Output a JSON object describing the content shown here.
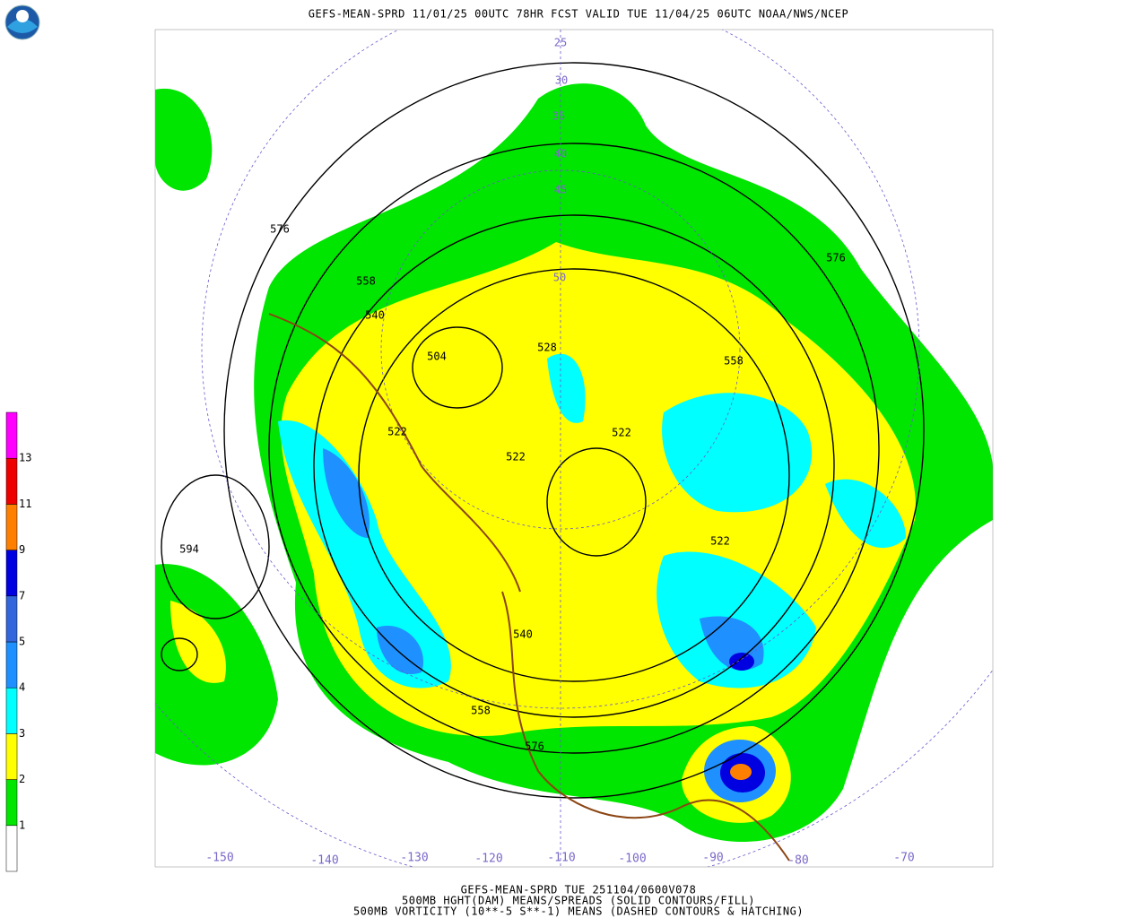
{
  "header": {
    "title": "GEFS-MEAN-SPRD 11/01/25 00UTC 78HR FCST VALID TUE 11/04/25 06UTC NOAA/NWS/NCEP"
  },
  "footer": {
    "lines": [
      "GEFS-MEAN-SPRD TUE 251104/0600V078",
      "500MB HGHT(DAM) MEANS/SPREADS (SOLID CONTOURS/FILL)",
      "500MB VORTICITY (10**-5 S**-1) MEANS (DASHED CONTOURS & HATCHING)"
    ]
  },
  "colorbar": {
    "levels": [
      1,
      2,
      3,
      4,
      5,
      7,
      9,
      11,
      13
    ],
    "colors": [
      "#ffffff",
      "#00e600",
      "#ffff00",
      "#00ffff",
      "#1e90ff",
      "#3366dd",
      "#0000e0",
      "#ff7f00",
      "#ee0000",
      "#ff00ff"
    ]
  },
  "map": {
    "contour_labels": [
      576,
      558,
      540,
      504,
      528,
      522,
      522,
      522,
      558,
      576,
      594,
      540,
      558,
      576,
      522
    ],
    "longitude_labels": [
      -150,
      -140,
      -130,
      -120,
      -110,
      -100,
      -90,
      -80,
      -70
    ],
    "latitude_labels": [
      25,
      30,
      35,
      40,
      45,
      50
    ]
  }
}
